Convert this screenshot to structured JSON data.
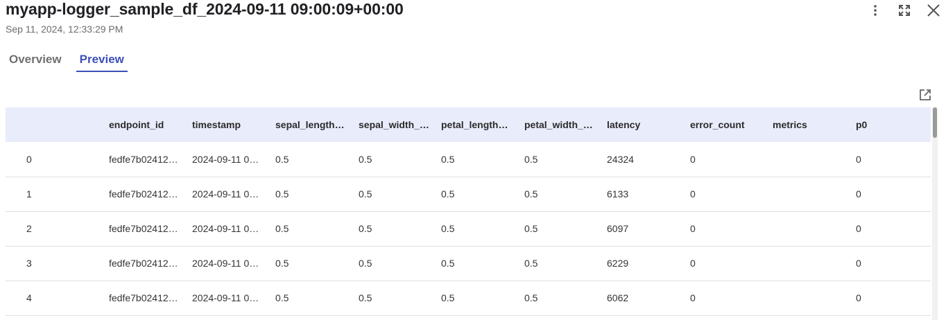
{
  "header": {
    "title": "myapp-logger_sample_df_2024-09-11 09:00:09+00:00",
    "subtitle": "Sep 11, 2024, 12:33:29 PM"
  },
  "actions": {
    "more_icon": "more-vertical-icon",
    "fullscreen_icon": "fullscreen-icon",
    "close_icon": "close-icon",
    "open_external_icon": "open-external-icon"
  },
  "tabs": [
    {
      "label": "Overview",
      "active": false
    },
    {
      "label": "Preview",
      "active": true
    }
  ],
  "table": {
    "columns": [
      "",
      "endpoint_id",
      "timestamp",
      "sepal_length_cm",
      "sepal_width_cm",
      "petal_length_cm",
      "petal_width_cm",
      "latency",
      "error_count",
      "metrics",
      "p0"
    ],
    "rows": [
      [
        "0",
        "fedfe7b02412…",
        "2024-09-11 0…",
        "0.5",
        "0.5",
        "0.5",
        "0.5",
        "24324",
        "0",
        "",
        "0"
      ],
      [
        "1",
        "fedfe7b02412…",
        "2024-09-11 0…",
        "0.5",
        "0.5",
        "0.5",
        "0.5",
        "6133",
        "0",
        "",
        "0"
      ],
      [
        "2",
        "fedfe7b02412…",
        "2024-09-11 0…",
        "0.5",
        "0.5",
        "0.5",
        "0.5",
        "6097",
        "0",
        "",
        "0"
      ],
      [
        "3",
        "fedfe7b02412…",
        "2024-09-11 0…",
        "0.5",
        "0.5",
        "0.5",
        "0.5",
        "6229",
        "0",
        "",
        "0"
      ],
      [
        "4",
        "fedfe7b02412…",
        "2024-09-11 0…",
        "0.5",
        "0.5",
        "0.5",
        "0.5",
        "6062",
        "0",
        "",
        "0"
      ]
    ]
  },
  "colors": {
    "accent": "#3c4fb8",
    "header_bg": "#e8ecfb"
  }
}
